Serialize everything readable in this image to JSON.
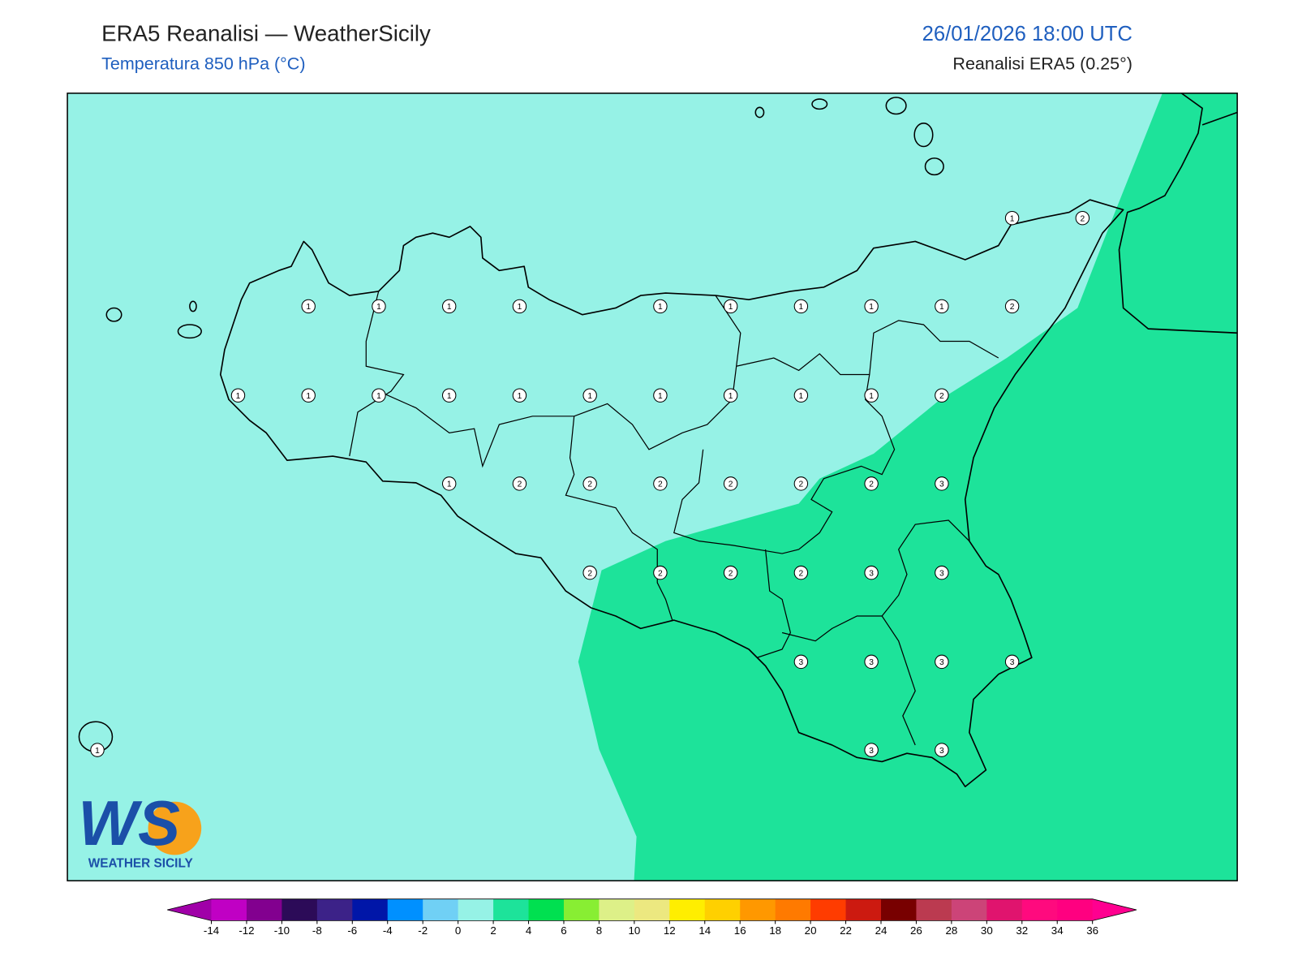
{
  "header": {
    "title": "ERA5 Reanalisi — WeatherSicily",
    "subtitle": "Temperatura 850 hPa (°C)",
    "datetime": "26/01/2026 18:00 UTC",
    "source": "Reanalisi ERA5 (0.25°)"
  },
  "map": {
    "grid_labels": [
      [
        null,
        null,
        null,
        null,
        null,
        null,
        null,
        null,
        null,
        null,
        null,
        null,
        null,
        1,
        2
      ],
      [
        null,
        null,
        null,
        1,
        1,
        1,
        1,
        null,
        1,
        1,
        1,
        1,
        1,
        2,
        null
      ],
      [
        null,
        null,
        1,
        1,
        1,
        1,
        1,
        1,
        1,
        1,
        1,
        1,
        2,
        null,
        null
      ],
      [
        null,
        null,
        null,
        null,
        null,
        1,
        2,
        2,
        2,
        2,
        2,
        2,
        3,
        null,
        null
      ],
      [
        null,
        null,
        null,
        null,
        null,
        null,
        null,
        2,
        2,
        2,
        2,
        3,
        3,
        null,
        null
      ],
      [
        null,
        null,
        null,
        null,
        null,
        null,
        null,
        null,
        null,
        null,
        3,
        3,
        3,
        3,
        null
      ],
      [
        1,
        null,
        null,
        null,
        null,
        null,
        null,
        null,
        null,
        null,
        null,
        3,
        3,
        null,
        null
      ]
    ]
  },
  "colorbar": {
    "ticks": [
      -14,
      -12,
      -10,
      -8,
      -6,
      -4,
      -2,
      0,
      2,
      4,
      6,
      8,
      10,
      12,
      14,
      16,
      18,
      20,
      22,
      24,
      26,
      28,
      30,
      32,
      34,
      36
    ],
    "colors": [
      "#c000c4",
      "#82008f",
      "#2c0b58",
      "#3c2288",
      "#0016a8",
      "#0090ff",
      "#70d0f5",
      "#96f2e6",
      "#1de39a",
      "#00e050",
      "#88ee33",
      "#ddf088",
      "#ece880",
      "#ffee00",
      "#ffd000",
      "#ff9800",
      "#ff7a00",
      "#ff3c00",
      "#cc1a10",
      "#780000",
      "#bb3a50",
      "#cc4478",
      "#e0146e",
      "#ff0a7e",
      "#ff0080"
    ],
    "under": "#a000a8",
    "over": "#ff0090"
  },
  "logo": {
    "mark": "WS",
    "text": "WEATHER SICILY"
  }
}
